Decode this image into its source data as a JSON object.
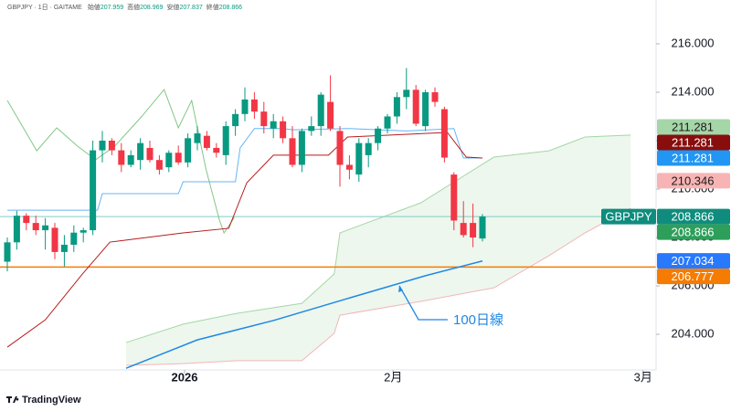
{
  "header": {
    "symbol": "GBPJPY · 1日 · GAITAME",
    "ohlc": [
      {
        "label": "始値",
        "value": 207.959
      },
      {
        "label": "高値",
        "value": 208.969
      },
      {
        "label": "安値",
        "value": 207.837
      },
      {
        "label": "終値",
        "value": 208.866
      }
    ]
  },
  "chart_data": {
    "type": "candlestick",
    "open": [
      207.0,
      207.8,
      208.9,
      208.6,
      208.3,
      208.4,
      207.4,
      207.7,
      208.2,
      208.3,
      211.6,
      212.0,
      211.6,
      211.0,
      211.2,
      211.7,
      211.2,
      210.9,
      211.5,
      211.1,
      211.9,
      212.2,
      211.7,
      211.4,
      212.6,
      213.1,
      213.7,
      213.2,
      212.5,
      212.8,
      212.1,
      211.0,
      212.4,
      212.6,
      213.6,
      212.4,
      211.0,
      210.6,
      211.4,
      211.9,
      212.5,
      213.0,
      213.8,
      214.1,
      212.6,
      214.0,
      213.3,
      210.6,
      208.6,
      208.6,
      207.959
    ],
    "high": [
      208.0,
      209.1,
      209.0,
      208.9,
      208.8,
      208.6,
      208.1,
      208.5,
      208.4,
      212.0,
      212.4,
      212.1,
      211.9,
      211.6,
      212.1,
      212.0,
      211.4,
      211.6,
      211.8,
      212.3,
      212.6,
      212.4,
      211.9,
      212.8,
      213.3,
      214.2,
      214.0,
      213.6,
      213.1,
      213.0,
      212.6,
      212.5,
      213.0,
      214.0,
      214.7,
      212.6,
      211.4,
      212.1,
      212.1,
      212.6,
      213.1,
      214.0,
      215.0,
      214.3,
      214.1,
      214.2,
      213.4,
      210.7,
      209.5,
      209.4,
      208.969
    ],
    "low": [
      206.6,
      207.5,
      208.3,
      208.1,
      207.5,
      207.1,
      206.8,
      207.4,
      207.8,
      208.1,
      211.1,
      211.4,
      210.7,
      210.9,
      210.8,
      211.1,
      210.6,
      210.7,
      211.0,
      210.9,
      211.6,
      211.6,
      211.3,
      211.0,
      212.2,
      212.8,
      212.9,
      212.3,
      212.1,
      211.9,
      210.9,
      210.7,
      212.2,
      212.2,
      212.4,
      210.1,
      210.4,
      210.3,
      210.9,
      211.6,
      212.3,
      212.7,
      213.3,
      212.6,
      212.4,
      213.4,
      211.1,
      208.3,
      208.0,
      207.6,
      207.837
    ],
    "close": [
      207.8,
      208.9,
      208.6,
      208.3,
      208.5,
      207.4,
      207.7,
      208.2,
      208.3,
      211.6,
      212.0,
      211.6,
      211.0,
      211.4,
      211.9,
      211.2,
      210.8,
      211.5,
      211.1,
      212.1,
      212.3,
      211.7,
      211.5,
      212.6,
      213.1,
      213.7,
      213.2,
      212.6,
      212.8,
      212.1,
      211.0,
      212.4,
      212.6,
      213.9,
      212.5,
      211.0,
      210.8,
      211.9,
      211.9,
      212.5,
      213.0,
      213.8,
      214.1,
      212.7,
      214.0,
      213.6,
      211.3,
      208.7,
      208.1,
      208.0,
      208.866
    ],
    "up_color": "#089981",
    "down_color": "#f23645",
    "xlim": [
      -0.77,
      68.27
    ],
    "xticks": [
      {
        "value": 18.65,
        "label": "2026"
      },
      {
        "value": 40.6,
        "label": "2月"
      },
      {
        "value": 66.9,
        "label": "3月"
      }
    ],
    "ylim": [
      202.53,
      217.81
    ],
    "yticks": [
      {
        "value": 204,
        "label": "204.000"
      },
      {
        "value": 206,
        "label": "206.000"
      },
      {
        "value": 208,
        "label": "208.000"
      },
      {
        "value": 210,
        "label": "210.000"
      },
      {
        "value": 212,
        "label": "212.000"
      },
      {
        "value": 214,
        "label": "214.000"
      },
      {
        "value": 216,
        "label": "216.000"
      }
    ],
    "grid": false,
    "cloud": {
      "x": [
        12.5,
        18.5,
        24.2,
        31,
        34.4,
        35,
        43.5,
        51.2,
        57,
        60.8,
        65.6
      ],
      "upper": [
        203.66,
        204.42,
        204.87,
        205.28,
        206.49,
        208.19,
        209.43,
        211.32,
        211.58,
        212.15,
        212.23
      ],
      "lower": [
        202.72,
        202.79,
        202.91,
        202.91,
        204.04,
        204.79,
        205.36,
        205.92,
        207.25,
        208.19,
        209.21
      ],
      "fill": "rgba(76,175,80,0.10)",
      "upper_color": "#a5d6a7",
      "lower_color": "#f3b6b6"
    },
    "overlays": [
      {
        "color": "#81c784",
        "x": [
          0,
          3.1,
          5.2,
          7.4,
          9.3,
          11.3,
          14.1,
          16.5,
          18,
          19.4,
          20.9,
          22.3,
          22.8,
          23.9
        ],
        "values": [
          213.66,
          211.58,
          212.53,
          211.77,
          211.21,
          211.77,
          212.98,
          214.11,
          212.53,
          213.66,
          210.83,
          208.75,
          208.19,
          208.83
        ]
      },
      {
        "color": "#64b5f6",
        "x": [
          0,
          9.5,
          10,
          18,
          18.5,
          24,
          24.5,
          26,
          29,
          30,
          36,
          42,
          47,
          48,
          50
        ],
        "values": [
          209.13,
          209.13,
          209.81,
          209.81,
          210.3,
          210.3,
          211.7,
          212.5,
          212.5,
          212.45,
          212.5,
          212.4,
          212.5,
          211.281,
          211.281
        ]
      },
      {
        "color": "#b71c1c",
        "x": [
          0,
          4,
          7.9,
          10.8,
          18.5,
          23.3,
          25.2,
          28,
          33.8,
          35.8,
          46.3,
          48.3,
          50
        ],
        "values": [
          203.47,
          204.6,
          206.49,
          207.81,
          208.19,
          208.38,
          210.26,
          211.4,
          211.4,
          212.15,
          212.34,
          211.32,
          211.281
        ]
      },
      {
        "color": "#1e88e5",
        "x": [
          12.5,
          20,
          28,
          36,
          44,
          50
        ],
        "values": [
          202.6,
          203.77,
          204.57,
          205.5,
          206.42,
          207.03
        ]
      }
    ],
    "hlines": [
      {
        "value": 206.777,
        "color": "#f57c00"
      },
      {
        "value": 208.866,
        "color": "#80cbc4"
      }
    ],
    "price_labels": [
      {
        "value": 211.281,
        "label": "211.281",
        "color": "#a5d6a7",
        "text_color": "#1b1b1b"
      },
      {
        "value": 211.281,
        "label": "211.281",
        "color": "#880e0e",
        "text_color": "#ffffff"
      },
      {
        "value": 211.281,
        "label": "211.281",
        "color": "#2196f3",
        "text_color": "#ffffff"
      },
      {
        "value": 210.346,
        "label": "210.346",
        "color": "#f8b4b4",
        "text_color": "#1b1b1b"
      },
      {
        "value": 208.866,
        "label": "208.866",
        "color": "#0f8c7e",
        "text_color": "#ffffff",
        "title": "GBPJPY"
      },
      {
        "value": 208.866,
        "label": "208.866",
        "color": "#2e9e5b",
        "text_color": "#ffffff"
      },
      {
        "value": 207.034,
        "label": "207.034",
        "color": "#2979ff",
        "text_color": "#ffffff"
      },
      {
        "value": 206.777,
        "label": "206.777",
        "color": "#f57c00",
        "text_color": "#ffffff"
      }
    ],
    "annotation": {
      "text": "100日線",
      "color": "#1e88e5"
    }
  },
  "footer": {
    "brand": "TradingView"
  }
}
